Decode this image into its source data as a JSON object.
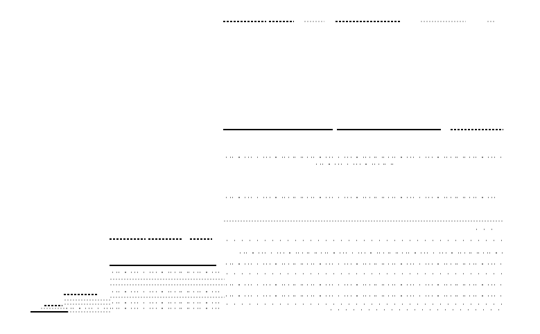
{
  "figure": {
    "description_visible_text": "",
    "panels": [
      {
        "id": "xl"
      },
      {
        "id": "lg"
      },
      {
        "id": "md"
      },
      {
        "id": "sm"
      }
    ]
  }
}
